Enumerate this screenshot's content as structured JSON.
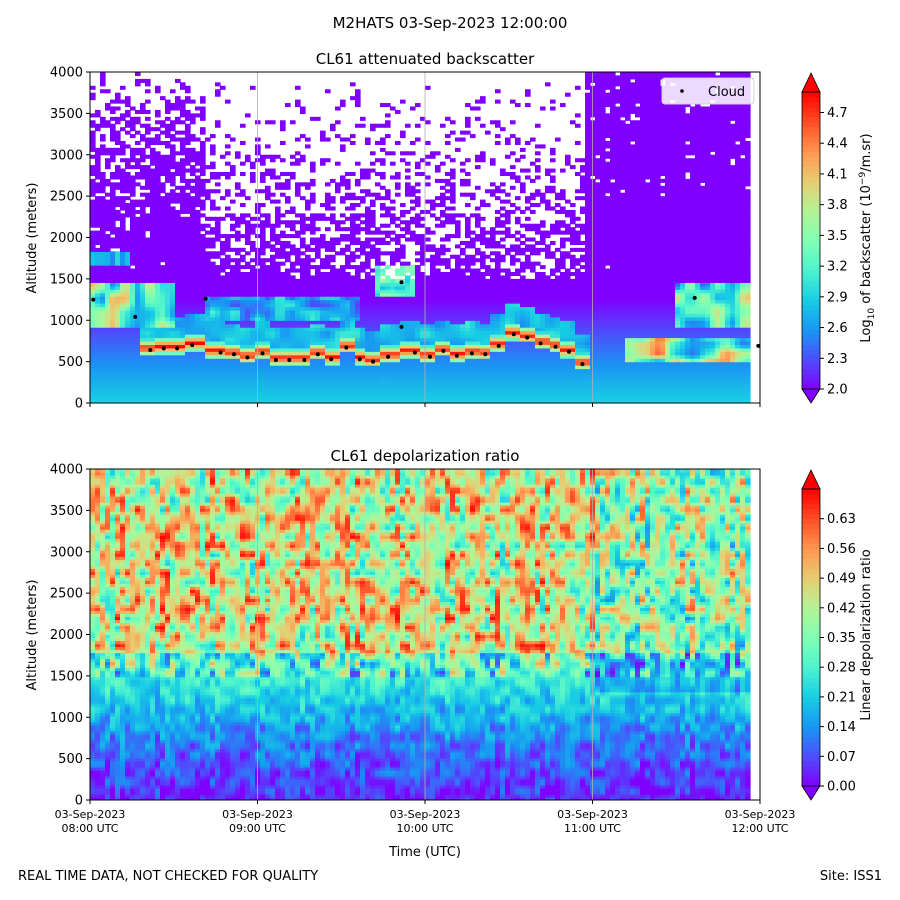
{
  "suptitle": "M2HATS 03-Sep-2023 12:00:00",
  "footer": {
    "left": "REAL TIME DATA, NOT CHECKED FOR QUALITY",
    "right": "Site: ISS1"
  },
  "colors": {
    "rainbow": [
      "#8000ff",
      "#4e4dfc",
      "#1996f3",
      "#18cde4",
      "#4df3ce",
      "#80ffb4",
      "#b3f396",
      "#e7cd72",
      "#ff964f",
      "#ff4d27",
      "#ff0000"
    ],
    "cloud_marker": "#000000",
    "grid": "#b0b0b0"
  },
  "chart_data": [
    {
      "type": "heatmap",
      "title": "CL61 attenuated backscatter",
      "xlabel": "",
      "ylabel": "Altitude (meters)",
      "xlim": [
        8.0,
        12.0
      ],
      "ylim": [
        0,
        4000
      ],
      "xticks": [
        8,
        9,
        10,
        11,
        12
      ],
      "yticks": [
        0,
        500,
        1000,
        1500,
        2000,
        2500,
        3000,
        3500,
        4000
      ],
      "ytick_labels": [
        "0",
        "500",
        "1000",
        "1500",
        "2000",
        "2500",
        "3000",
        "3500",
        "4000"
      ],
      "colorbar": {
        "label_pre": "Log",
        "label_sub": "10",
        "label_mid": " of backscatter (10",
        "label_sup": "−9",
        "label_post": "/m.sr)",
        "range": [
          2.0,
          4.9
        ],
        "ticks": [
          2.0,
          2.3,
          2.6,
          2.9,
          3.2,
          3.5,
          3.8,
          4.1,
          4.4,
          4.7
        ],
        "tick_labels": [
          "2.0",
          "2.3",
          "2.6",
          "2.9",
          "3.2",
          "3.5",
          "3.8",
          "4.1",
          "4.4",
          "4.7"
        ]
      },
      "legend": {
        "label": "Cloud",
        "placement": "top-right"
      },
      "cloud_base_points": [
        {
          "t": 8.02,
          "alt": 1250
        },
        {
          "t": 8.27,
          "alt": 1040
        },
        {
          "t": 8.36,
          "alt": 640
        },
        {
          "t": 8.44,
          "alt": 660
        },
        {
          "t": 8.52,
          "alt": 660
        },
        {
          "t": 8.61,
          "alt": 700
        },
        {
          "t": 8.69,
          "alt": 1260
        },
        {
          "t": 8.78,
          "alt": 610
        },
        {
          "t": 8.86,
          "alt": 590
        },
        {
          "t": 8.94,
          "alt": 550
        },
        {
          "t": 9.03,
          "alt": 600
        },
        {
          "t": 9.11,
          "alt": 520
        },
        {
          "t": 9.19,
          "alt": 520
        },
        {
          "t": 9.28,
          "alt": 520
        },
        {
          "t": 9.36,
          "alt": 590
        },
        {
          "t": 9.44,
          "alt": 530
        },
        {
          "t": 9.53,
          "alt": 670
        },
        {
          "t": 9.61,
          "alt": 530
        },
        {
          "t": 9.69,
          "alt": 500
        },
        {
          "t": 9.78,
          "alt": 560
        },
        {
          "t": 9.86,
          "alt": 1460
        },
        {
          "t": 9.86,
          "alt": 920
        },
        {
          "t": 9.94,
          "alt": 610
        },
        {
          "t": 10.03,
          "alt": 560
        },
        {
          "t": 10.11,
          "alt": 630
        },
        {
          "t": 10.19,
          "alt": 570
        },
        {
          "t": 10.28,
          "alt": 600
        },
        {
          "t": 10.36,
          "alt": 590
        },
        {
          "t": 10.44,
          "alt": 690
        },
        {
          "t": 10.53,
          "alt": 830
        },
        {
          "t": 10.61,
          "alt": 790
        },
        {
          "t": 10.69,
          "alt": 720
        },
        {
          "t": 10.78,
          "alt": 680
        },
        {
          "t": 10.86,
          "alt": 620
        },
        {
          "t": 10.94,
          "alt": 470
        },
        {
          "t": 11.61,
          "alt": 1270
        },
        {
          "t": 11.99,
          "alt": 690
        }
      ]
    },
    {
      "type": "heatmap",
      "title": "CL61 depolarization ratio",
      "xlabel": "Time (UTC)",
      "ylabel": "Altitude (meters)",
      "xlim": [
        8.0,
        12.0
      ],
      "ylim": [
        0,
        4000
      ],
      "xticks": [
        8,
        9,
        10,
        11,
        12
      ],
      "xtick_labels": [
        [
          "03-Sep-2023",
          "08:00 UTC"
        ],
        [
          "03-Sep-2023",
          "09:00 UTC"
        ],
        [
          "03-Sep-2023",
          "10:00 UTC"
        ],
        [
          "03-Sep-2023",
          "11:00 UTC"
        ],
        [
          "03-Sep-2023",
          "12:00 UTC"
        ]
      ],
      "yticks": [
        0,
        500,
        1000,
        1500,
        2000,
        2500,
        3000,
        3500,
        4000
      ],
      "ytick_labels": [
        "0",
        "500",
        "1000",
        "1500",
        "2000",
        "2500",
        "3000",
        "3500",
        "4000"
      ],
      "colorbar": {
        "label": "Linear depolarization ratio",
        "range": [
          0.0,
          0.7
        ],
        "ticks": [
          0.0,
          0.07,
          0.14,
          0.21,
          0.28,
          0.35,
          0.42,
          0.49,
          0.56,
          0.63
        ],
        "tick_labels": [
          "0.00",
          "0.07",
          "0.14",
          "0.21",
          "0.28",
          "0.35",
          "0.42",
          "0.49",
          "0.56",
          "0.63"
        ]
      }
    }
  ]
}
